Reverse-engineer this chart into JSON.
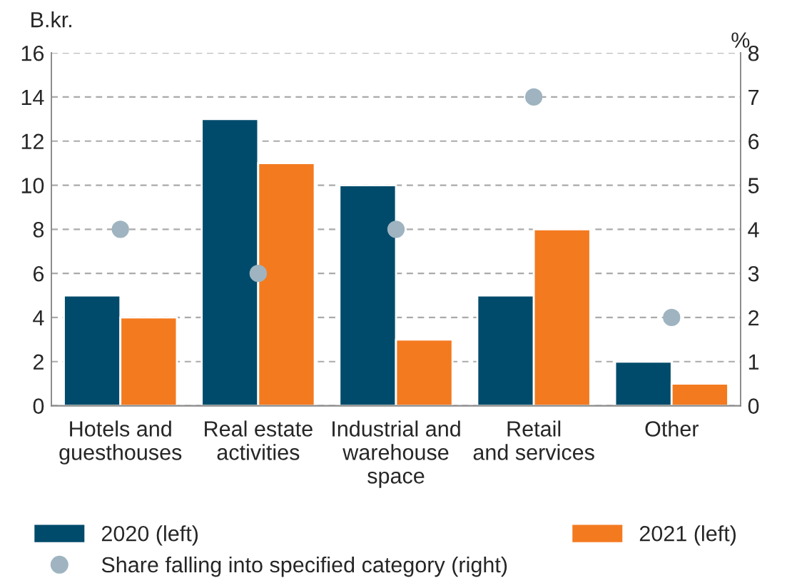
{
  "chart_data": {
    "type": "bar",
    "categories": [
      "Hotels and\nguesthouses",
      "Real estate\nactivities",
      "Industrial and\nwarehouse\nspace",
      "Retail\nand services",
      "Other"
    ],
    "series": [
      {
        "name": "2020 (left)",
        "color": "#004b6b",
        "values": [
          5,
          13,
          10,
          5,
          2
        ]
      },
      {
        "name": "2021 (left)",
        "color": "#f47a20",
        "values": [
          4,
          11,
          3,
          8,
          1
        ]
      },
      {
        "name": "Share falling into specified category (right)",
        "type": "scatter",
        "axis": "y2",
        "color": "#9fb4c0",
        "values": [
          4,
          3,
          4,
          7,
          2
        ]
      }
    ],
    "ylabel": "B.kr.",
    "y2label": "%",
    "ylim": [
      0,
      16
    ],
    "yticks": [
      0,
      2,
      4,
      6,
      8,
      10,
      12,
      14,
      16
    ],
    "y2lim": [
      0,
      8
    ],
    "y2ticks": [
      0,
      1,
      2,
      3,
      4,
      5,
      6,
      7,
      8
    ],
    "grid": "y",
    "legend": "bottom",
    "marker": "circle"
  }
}
